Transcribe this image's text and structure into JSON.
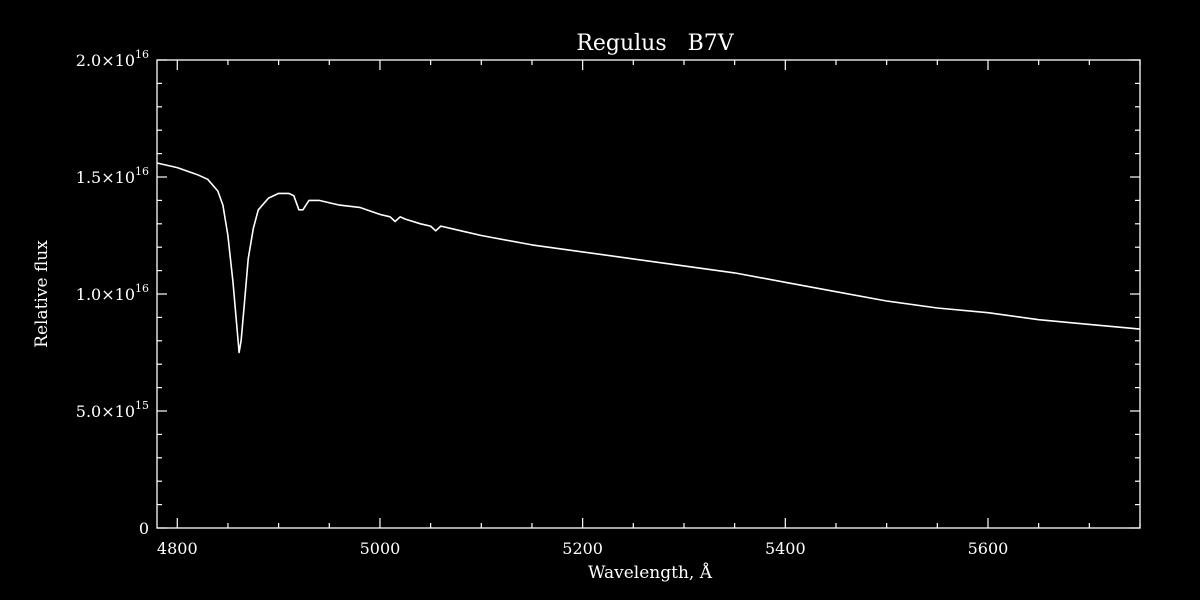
{
  "chart_data": {
    "type": "line",
    "title": "Regulus   B7V",
    "xlabel": "Wavelength, Å",
    "ylabel": "Relative flux",
    "xlim": [
      4780,
      5750
    ],
    "ylim": [
      0,
      2e+16
    ],
    "grid": false,
    "legend": "none",
    "x_ticks": [
      {
        "value": 4800,
        "label": "4800"
      },
      {
        "value": 5000,
        "label": "5000"
      },
      {
        "value": 5200,
        "label": "5200"
      },
      {
        "value": 5400,
        "label": "5400"
      },
      {
        "value": 5600,
        "label": "5600"
      }
    ],
    "x_minor_step": 50,
    "y_ticks": [
      {
        "value": 0,
        "mantissa": "0",
        "exponent": ""
      },
      {
        "value": 5000000000000000.0,
        "mantissa": "5.0×10",
        "exponent": "15"
      },
      {
        "value": 1e+16,
        "mantissa": "1.0×10",
        "exponent": "16"
      },
      {
        "value": 1.5e+16,
        "mantissa": "1.5×10",
        "exponent": "16"
      },
      {
        "value": 2e+16,
        "mantissa": "2.0×10",
        "exponent": "16"
      }
    ],
    "y_minor_step": 1000000000000000.0,
    "series": [
      {
        "color": "#ffffff",
        "points": [
          [
            4780,
            1.56e+16
          ],
          [
            4800,
            1.54e+16
          ],
          [
            4820,
            1.51e+16
          ],
          [
            4830,
            1.49e+16
          ],
          [
            4840,
            1.44e+16
          ],
          [
            4845,
            1.38e+16
          ],
          [
            4850,
            1.25e+16
          ],
          [
            4855,
            1.05e+16
          ],
          [
            4860,
            8000000000000000.0
          ],
          [
            4861,
            7500000000000000.0
          ],
          [
            4863,
            8000000000000000.0
          ],
          [
            4866,
            9500000000000000.0
          ],
          [
            4870,
            1.15e+16
          ],
          [
            4875,
            1.28e+16
          ],
          [
            4880,
            1.36e+16
          ],
          [
            4890,
            1.41e+16
          ],
          [
            4900,
            1.43e+16
          ],
          [
            4910,
            1.43e+16
          ],
          [
            4915,
            1.42e+16
          ],
          [
            4920,
            1.36e+16
          ],
          [
            4924,
            1.36e+16
          ],
          [
            4930,
            1.4e+16
          ],
          [
            4940,
            1.4e+16
          ],
          [
            4960,
            1.38e+16
          ],
          [
            4980,
            1.37e+16
          ],
          [
            5000,
            1.34e+16
          ],
          [
            5010,
            1.33e+16
          ],
          [
            5015,
            1.31e+16
          ],
          [
            5020,
            1.33e+16
          ],
          [
            5025,
            1.32e+16
          ],
          [
            5040,
            1.3e+16
          ],
          [
            5050,
            1.29e+16
          ],
          [
            5055,
            1.27e+16
          ],
          [
            5060,
            1.29e+16
          ],
          [
            5080,
            1.27e+16
          ],
          [
            5100,
            1.25e+16
          ],
          [
            5150,
            1.21e+16
          ],
          [
            5200,
            1.18e+16
          ],
          [
            5250,
            1.15e+16
          ],
          [
            5300,
            1.12e+16
          ],
          [
            5350,
            1.09e+16
          ],
          [
            5400,
            1.05e+16
          ],
          [
            5450,
            1.01e+16
          ],
          [
            5500,
            9700000000000000.0
          ],
          [
            5550,
            9400000000000000.0
          ],
          [
            5600,
            9200000000000000.0
          ],
          [
            5650,
            8900000000000000.0
          ],
          [
            5700,
            8700000000000000.0
          ],
          [
            5750,
            8500000000000000.0
          ]
        ]
      }
    ]
  }
}
